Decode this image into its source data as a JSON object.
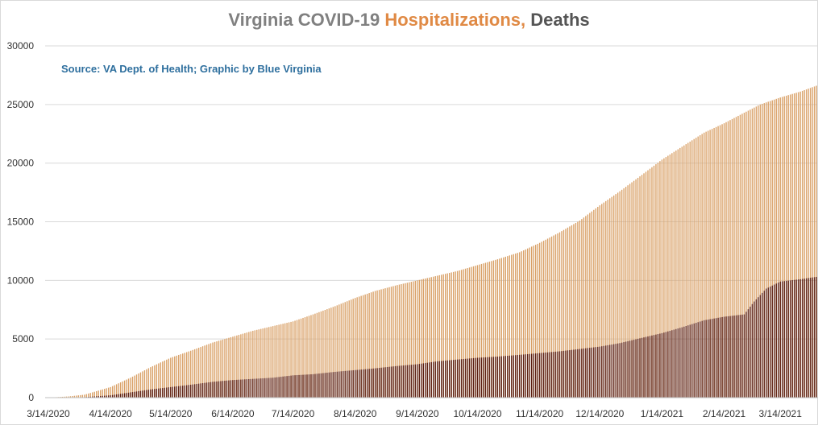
{
  "title": {
    "part1": "Virginia COVID-19 ",
    "part2": "Hospitalizations, ",
    "part3": "Deaths",
    "colors": {
      "part1": "#808080",
      "part2": "#e08a45",
      "part3": "#555555"
    }
  },
  "source_note": "Source: VA Dept. of Health; Graphic by Blue Virginia",
  "chart_data": {
    "type": "bar",
    "grid": true,
    "ylim": [
      0,
      30000
    ],
    "yticks": [
      0,
      5000,
      10000,
      15000,
      20000,
      25000,
      30000
    ],
    "xticks": [
      "3/14/2020",
      "4/14/2020",
      "5/14/2020",
      "6/14/2020",
      "7/14/2020",
      "8/14/2020",
      "9/14/2020",
      "10/14/2020",
      "11/14/2020",
      "12/14/2020",
      "1/14/2021",
      "2/14/2021",
      "3/14/2021"
    ],
    "x_start": "3/14/2020",
    "x_end": "4/1/2021",
    "series": [
      {
        "name": "Hospitalizations",
        "color": "#d9a066",
        "points": [
          [
            "3/14/2020",
            0
          ],
          [
            "3/24/2020",
            100
          ],
          [
            "4/1/2020",
            250
          ],
          [
            "4/14/2020",
            900
          ],
          [
            "4/24/2020",
            1700
          ],
          [
            "5/4/2020",
            2600
          ],
          [
            "5/14/2020",
            3400
          ],
          [
            "5/24/2020",
            4000
          ],
          [
            "6/4/2020",
            4700
          ],
          [
            "6/14/2020",
            5200
          ],
          [
            "6/24/2020",
            5700
          ],
          [
            "7/4/2020",
            6100
          ],
          [
            "7/14/2020",
            6500
          ],
          [
            "7/24/2020",
            7100
          ],
          [
            "8/4/2020",
            7800
          ],
          [
            "8/14/2020",
            8500
          ],
          [
            "8/24/2020",
            9100
          ],
          [
            "9/4/2020",
            9600
          ],
          [
            "9/14/2020",
            10000
          ],
          [
            "9/24/2020",
            10400
          ],
          [
            "10/4/2020",
            10800
          ],
          [
            "10/14/2020",
            11300
          ],
          [
            "10/24/2020",
            11800
          ],
          [
            "11/4/2020",
            12400
          ],
          [
            "11/14/2020",
            13200
          ],
          [
            "11/24/2020",
            14100
          ],
          [
            "12/4/2020",
            15100
          ],
          [
            "12/14/2020",
            16400
          ],
          [
            "12/24/2020",
            17600
          ],
          [
            "1/4/2021",
            19000
          ],
          [
            "1/14/2021",
            20300
          ],
          [
            "1/24/2021",
            21400
          ],
          [
            "2/4/2021",
            22600
          ],
          [
            "2/14/2021",
            23400
          ],
          [
            "2/24/2021",
            24300
          ],
          [
            "3/4/2021",
            25000
          ],
          [
            "3/14/2021",
            25600
          ],
          [
            "3/24/2021",
            26100
          ],
          [
            "4/1/2021",
            26600
          ]
        ]
      },
      {
        "name": "Deaths",
        "color": "#5c1f12",
        "points": [
          [
            "3/14/2020",
            0
          ],
          [
            "4/1/2020",
            40
          ],
          [
            "4/14/2020",
            200
          ],
          [
            "4/24/2020",
            450
          ],
          [
            "5/4/2020",
            700
          ],
          [
            "5/14/2020",
            900
          ],
          [
            "5/24/2020",
            1100
          ],
          [
            "6/4/2020",
            1350
          ],
          [
            "6/14/2020",
            1500
          ],
          [
            "6/24/2020",
            1600
          ],
          [
            "7/4/2020",
            1700
          ],
          [
            "7/14/2020",
            1900
          ],
          [
            "7/24/2020",
            2000
          ],
          [
            "8/4/2020",
            2200
          ],
          [
            "8/14/2020",
            2350
          ],
          [
            "8/24/2020",
            2500
          ],
          [
            "9/4/2020",
            2700
          ],
          [
            "9/14/2020",
            2850
          ],
          [
            "9/24/2020",
            3100
          ],
          [
            "10/4/2020",
            3250
          ],
          [
            "10/14/2020",
            3400
          ],
          [
            "10/24/2020",
            3500
          ],
          [
            "11/4/2020",
            3650
          ],
          [
            "11/14/2020",
            3800
          ],
          [
            "11/24/2020",
            3950
          ],
          [
            "12/4/2020",
            4150
          ],
          [
            "12/14/2020",
            4350
          ],
          [
            "12/24/2020",
            4650
          ],
          [
            "1/4/2021",
            5100
          ],
          [
            "1/14/2021",
            5500
          ],
          [
            "1/24/2021",
            6000
          ],
          [
            "2/4/2021",
            6600
          ],
          [
            "2/14/2021",
            6900
          ],
          [
            "2/24/2021",
            7100
          ],
          [
            "3/1/2021",
            8200
          ],
          [
            "3/7/2021",
            9300
          ],
          [
            "3/14/2021",
            9900
          ],
          [
            "3/24/2021",
            10100
          ],
          [
            "4/1/2021",
            10300
          ]
        ]
      }
    ]
  }
}
